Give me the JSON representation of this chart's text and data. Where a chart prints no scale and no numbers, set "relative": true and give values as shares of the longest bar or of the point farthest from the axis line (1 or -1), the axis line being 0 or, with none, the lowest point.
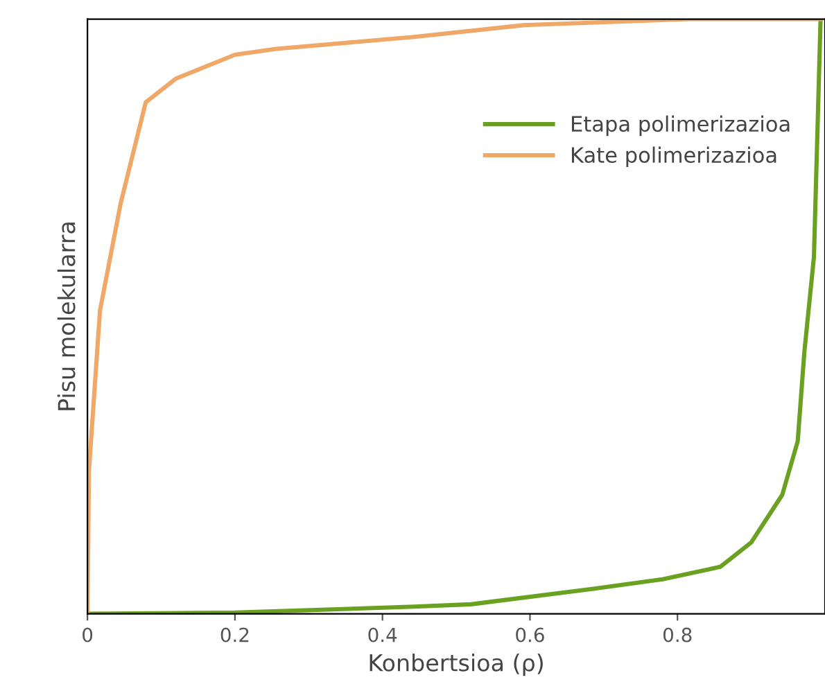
{
  "chart_data": {
    "type": "line",
    "xlabel": "Konbertsioa (ρ)",
    "ylabel": "Pisu molekularra",
    "relative": true,
    "xlim": [
      0,
      1
    ],
    "xticks": [
      0,
      0.2,
      0.4,
      0.6,
      0.8
    ],
    "legend": "top right",
    "grid": false,
    "marker": "none",
    "line_style": "solid",
    "series": [
      {
        "name": "Etapa polimerizazioa",
        "color": "#6aa121",
        "x": [
          0,
          0.2,
          0.443,
          0.52,
          0.686,
          0.78,
          0.858,
          0.9,
          0.942,
          0.963,
          0.972,
          0.985,
          0.994
        ],
        "values": [
          0,
          0.002,
          0.012,
          0.016,
          0.042,
          0.058,
          0.079,
          0.12,
          0.2,
          0.29,
          0.44,
          0.6,
          1.0
        ]
      },
      {
        "name": "Kate polimerizazioa",
        "color": "#f0a868",
        "x": [
          0,
          0.002,
          0.017,
          0.045,
          0.079,
          0.12,
          0.2,
          0.256,
          0.443,
          0.593,
          0.817,
          0.994
        ],
        "values": [
          0,
          0.24,
          0.51,
          0.69,
          0.86,
          0.9,
          0.94,
          0.95,
          0.97,
          0.99,
          1.0,
          1.0
        ]
      }
    ]
  }
}
